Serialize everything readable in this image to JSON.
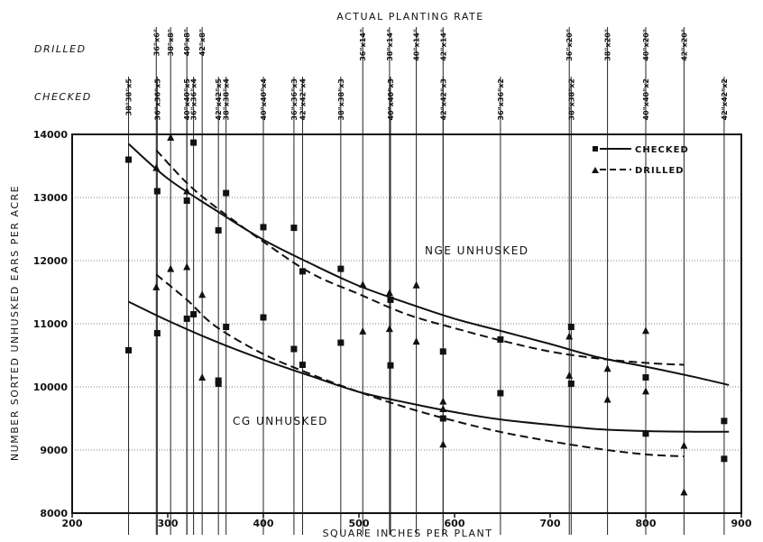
{
  "chart_data": {
    "type": "scatter",
    "top_title": "ACTUAL PLANTING RATE",
    "xlabel": "SQUARE INCHES PER PLANT",
    "ylabel": "NUMBER SORTED UNHUSKED EARS PER ACRE",
    "xlim": [
      200,
      900
    ],
    "ylim": [
      8000,
      14000
    ],
    "x_ticks": [
      200,
      300,
      400,
      500,
      600,
      700,
      800,
      900
    ],
    "y_ticks": [
      8000,
      9000,
      10000,
      11000,
      12000,
      13000,
      14000
    ],
    "grid": true,
    "row_labels": {
      "drilled": "DRILLED",
      "checked": "CHECKED"
    },
    "drilled_rates": [
      {
        "x": 288,
        "label": "36\"x6\""
      },
      {
        "x": 303,
        "label": "38\"x8\""
      },
      {
        "x": 320,
        "label": "40\"x8\""
      },
      {
        "x": 336,
        "label": "42\"x8\""
      },
      {
        "x": 504,
        "label": "36\"x14\""
      },
      {
        "x": 532,
        "label": "38\"x14\""
      },
      {
        "x": 560,
        "label": "40\"x14\""
      },
      {
        "x": 588,
        "label": "42\"x14\""
      },
      {
        "x": 720,
        "label": "36\"x20\""
      },
      {
        "x": 760,
        "label": "38\"x20\""
      },
      {
        "x": 800,
        "label": "40\"x20\""
      },
      {
        "x": 840,
        "label": "42\"x20\""
      }
    ],
    "checked_rates": [
      {
        "x": 259,
        "label": "38\"38\"x5"
      },
      {
        "x": 289,
        "label": "36\"x36\"x5"
      },
      {
        "x": 320,
        "label": "40\"x40\"x5"
      },
      {
        "x": 327,
        "label": "36\"x36\"x4"
      },
      {
        "x": 353,
        "label": "42\"x42\"x5"
      },
      {
        "x": 361,
        "label": "38\"x38\"x4"
      },
      {
        "x": 400,
        "label": "40\"x40\"x4"
      },
      {
        "x": 432,
        "label": "36\"x36\"x3"
      },
      {
        "x": 441,
        "label": "42\"x42\"x4"
      },
      {
        "x": 481,
        "label": "38\"x38\"x3"
      },
      {
        "x": 533,
        "label": "40\"x40\"x3"
      },
      {
        "x": 588,
        "label": "42\"x42\"x3"
      },
      {
        "x": 648,
        "label": "36\"x36\"x2"
      },
      {
        "x": 722,
        "label": "38\"x38\"x2"
      },
      {
        "x": 800,
        "label": "40\"x40\"x2"
      },
      {
        "x": 882,
        "label": "42\"x42\"x2"
      }
    ],
    "legend": {
      "position": "top-right",
      "checked": "CHECKED",
      "drilled": "DRILLED"
    },
    "annotations": {
      "nge": "NGE UNHUSKED",
      "cg": "CG UNHUSKED"
    },
    "checked_points": [
      [
        259,
        13600
      ],
      [
        259,
        10580
      ],
      [
        289,
        13100
      ],
      [
        289,
        10850
      ],
      [
        320,
        12950
      ],
      [
        320,
        11080
      ],
      [
        327,
        13870
      ],
      [
        327,
        11150
      ],
      [
        353,
        12480
      ],
      [
        353,
        10100
      ],
      [
        353,
        10050
      ],
      [
        361,
        13070
      ],
      [
        361,
        10950
      ],
      [
        400,
        12530
      ],
      [
        400,
        11100
      ],
      [
        432,
        12520
      ],
      [
        432,
        10600
      ],
      [
        441,
        11830
      ],
      [
        441,
        10350
      ],
      [
        481,
        11870
      ],
      [
        481,
        10700
      ],
      [
        533,
        11380
      ],
      [
        533,
        10340
      ],
      [
        588,
        10560
      ],
      [
        588,
        9500
      ],
      [
        648,
        10750
      ],
      [
        648,
        9900
      ],
      [
        722,
        10950
      ],
      [
        722,
        10050
      ],
      [
        800,
        10150
      ],
      [
        800,
        9260
      ],
      [
        882,
        9460
      ],
      [
        882,
        8860
      ]
    ],
    "drilled_points": [
      [
        288,
        13470
      ],
      [
        288,
        11580
      ],
      [
        303,
        13950
      ],
      [
        303,
        11870
      ],
      [
        320,
        13100
      ],
      [
        320,
        11900
      ],
      [
        336,
        11460
      ],
      [
        336,
        10150
      ],
      [
        504,
        11620
      ],
      [
        504,
        10880
      ],
      [
        532,
        11490
      ],
      [
        532,
        10920
      ],
      [
        560,
        11610
      ],
      [
        560,
        10720
      ],
      [
        588,
        9770
      ],
      [
        588,
        9650
      ],
      [
        588,
        9090
      ],
      [
        720,
        10800
      ],
      [
        720,
        10180
      ],
      [
        760,
        10290
      ],
      [
        760,
        9800
      ],
      [
        800,
        10890
      ],
      [
        800,
        9930
      ],
      [
        840,
        9070
      ],
      [
        840,
        8330
      ]
    ],
    "series": [
      {
        "name": "CHECKED",
        "curve": "NGE UNHUSKED",
        "style": "solid",
        "x": [
          259,
          300,
          350,
          400,
          450,
          500,
          550,
          600,
          650,
          700,
          750,
          800,
          850,
          887
        ],
        "y": [
          13850,
          13300,
          12800,
          12330,
          11950,
          11600,
          11330,
          11080,
          10880,
          10680,
          10470,
          10320,
          10160,
          10030
        ]
      },
      {
        "name": "DRILLED",
        "curve": "NGE UNHUSKED",
        "style": "dashed",
        "x": [
          288,
          320,
          350,
          400,
          450,
          500,
          550,
          600,
          650,
          700,
          750,
          800,
          840
        ],
        "y": [
          13750,
          13230,
          12850,
          12300,
          11800,
          11470,
          11150,
          10930,
          10730,
          10560,
          10450,
          10380,
          10350
        ]
      },
      {
        "name": "CHECKED",
        "curve": "CG UNHUSKED",
        "style": "solid",
        "x": [
          259,
          300,
          350,
          400,
          450,
          500,
          550,
          600,
          650,
          700,
          750,
          800,
          850,
          887
        ],
        "y": [
          11350,
          11050,
          10720,
          10430,
          10170,
          9920,
          9750,
          9600,
          9480,
          9400,
          9330,
          9300,
          9290,
          9290
        ]
      },
      {
        "name": "DRILLED",
        "curve": "CG UNHUSKED",
        "style": "dashed",
        "x": [
          288,
          320,
          350,
          400,
          450,
          500,
          550,
          600,
          650,
          700,
          750,
          800,
          840
        ],
        "y": [
          11780,
          11380,
          10960,
          10520,
          10200,
          9920,
          9670,
          9460,
          9280,
          9140,
          9020,
          8930,
          8900
        ]
      }
    ]
  }
}
